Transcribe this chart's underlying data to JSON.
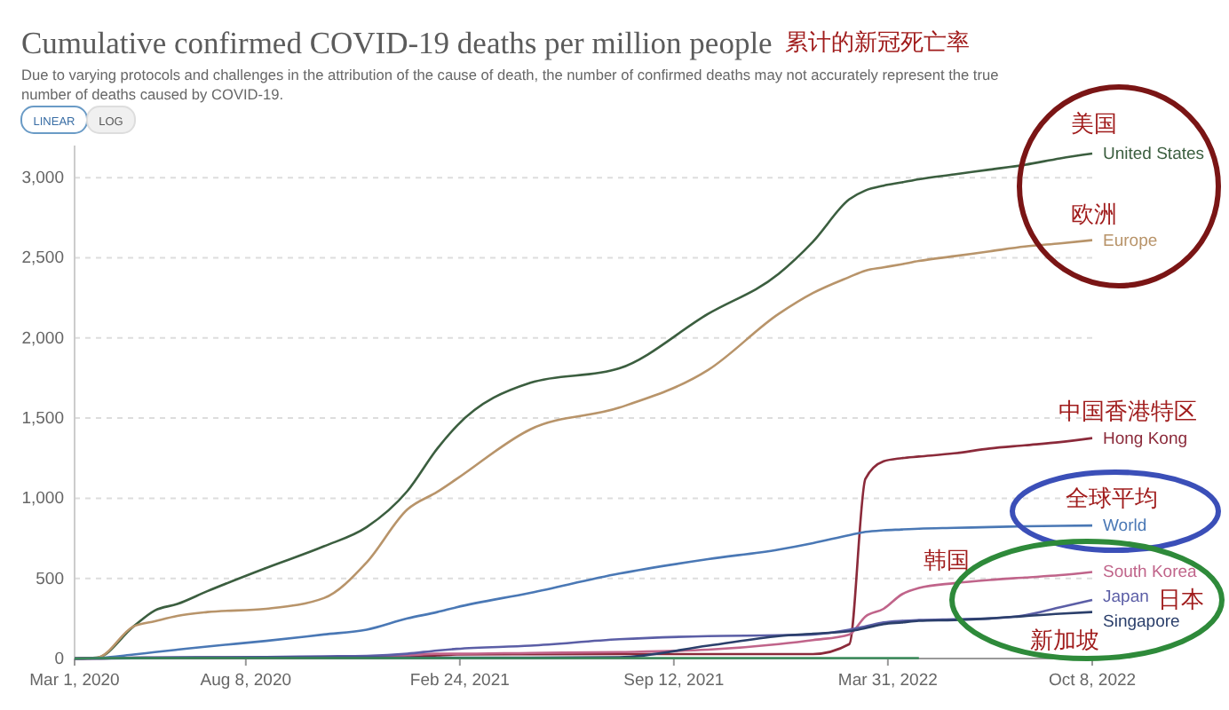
{
  "chart_data": {
    "type": "line",
    "title": "Cumulative confirmed COVID-19 deaths per million people",
    "subtitle": "Due to varying protocols and challenges in the attribution of the cause of death, the number of confirmed deaths may not accurately represent the true number of deaths caused by COVID-19.",
    "annotations": [
      "累计的新冠死亡率",
      "LINEAR",
      "LOG",
      "美国",
      "欧洲",
      "中国香港特区",
      "全球平均",
      "韩国",
      "日本",
      "新加坡"
    ],
    "x": [
      "2020-03-01",
      "2020-03-22",
      "2020-04-25",
      "2020-05-15",
      "2020-06-05",
      "2020-07-03",
      "2020-08-27",
      "2020-10-20",
      "2020-11-29",
      "2021-01-06",
      "2021-02-03",
      "2021-02-21",
      "2021-05-01",
      "2021-07-23",
      "2021-10-14",
      "2021-12-19",
      "2022-01-20",
      "2022-02-23",
      "2022-03-10",
      "2022-03-27",
      "2022-04-13",
      "2022-04-29",
      "2022-06-01",
      "2022-07-04",
      "2022-08-06",
      "2022-09-08",
      "2022-10-08"
    ],
    "series": [
      {
        "name": "United States",
        "color": "#3b5e3f",
        "values": [
          0,
          5,
          200,
          300,
          340,
          420,
          565,
          700,
          820,
          1045,
          1310,
          1450,
          1720,
          1810,
          2150,
          2400,
          2600,
          2865,
          2920,
          2950,
          2970,
          2990,
          3020,
          3050,
          3080,
          3120,
          3150
        ]
      },
      {
        "name": "Europe",
        "color": "#b8946a",
        "values": [
          0,
          5,
          200,
          233,
          266,
          290,
          310,
          377,
          600,
          930,
          1040,
          1120,
          1430,
          1565,
          1800,
          2150,
          2280,
          2380,
          2420,
          2440,
          2460,
          2480,
          2510,
          2540,
          2570,
          2590,
          2610
        ]
      },
      {
        "name": "Hong Kong",
        "color": "#8b2a3a",
        "values": [
          0,
          1,
          1,
          1,
          1,
          1,
          3,
          4,
          4,
          10,
          20,
          25,
          27,
          28,
          28,
          28,
          28,
          90,
          1120,
          1230,
          1250,
          1260,
          1280,
          1310,
          1330,
          1350,
          1375
        ]
      },
      {
        "name": "World",
        "color": "#4a78b5",
        "values": [
          0,
          3,
          25,
          40,
          55,
          75,
          110,
          150,
          180,
          250,
          290,
          320,
          410,
          530,
          620,
          680,
          720,
          770,
          790,
          800,
          805,
          810,
          815,
          820,
          825,
          828,
          830
        ]
      },
      {
        "name": "South Korea",
        "color": "#c0648a",
        "values": [
          0,
          0,
          5,
          5,
          5,
          6,
          6,
          9,
          10,
          20,
          30,
          30,
          35,
          40,
          55,
          90,
          115,
          150,
          262,
          310,
          400,
          440,
          470,
          490,
          505,
          520,
          540
        ]
      },
      {
        "name": "Japan",
        "color": "#5b5ea6",
        "values": [
          0,
          0,
          5,
          7,
          8,
          8,
          10,
          14,
          17,
          30,
          50,
          60,
          80,
          120,
          140,
          145,
          150,
          180,
          200,
          225,
          235,
          240,
          245,
          250,
          270,
          320,
          365
        ]
      },
      {
        "name": "Singapore",
        "color": "#2b3f6b",
        "values": [
          0,
          0,
          2,
          3,
          4,
          5,
          5,
          5,
          5,
          5,
          5,
          5,
          5,
          8,
          80,
          140,
          155,
          170,
          190,
          215,
          225,
          235,
          240,
          250,
          265,
          280,
          290
        ]
      },
      {
        "color": "#3a8a5a",
        "values": [
          0,
          3,
          3,
          3,
          3,
          3,
          3,
          3,
          3,
          3,
          3,
          3,
          3,
          3,
          3,
          3,
          3,
          3,
          3,
          3,
          3,
          3,
          null,
          null,
          null,
          null,
          null
        ]
      }
    ],
    "xlim": [
      "2020-03-01",
      "2022-10-08"
    ],
    "xticks": [
      {
        "value": "2020-03-01",
        "label": "Mar 1, 2020"
      },
      {
        "value": "2020-08-08",
        "label": "Aug 8, 2020"
      },
      {
        "value": "2021-02-24",
        "label": "Feb 24, 2021"
      },
      {
        "value": "2021-09-12",
        "label": "Sep 12, 2021"
      },
      {
        "value": "2022-03-31",
        "label": "Mar 31, 2022"
      },
      {
        "value": "2022-10-08",
        "label": "Oct 8, 2022"
      }
    ],
    "ylim": [
      0,
      3200
    ],
    "yticks": [
      0,
      500,
      {
        "value": 1000,
        "label": "1,000"
      },
      {
        "value": 1500,
        "label": "1,500"
      },
      {
        "value": 2000,
        "label": "2,000"
      },
      {
        "value": 2500,
        "label": "2,500"
      },
      {
        "value": 3000,
        "label": "3,000"
      }
    ],
    "grid": "y",
    "line_style": "solid",
    "marker": "none"
  }
}
